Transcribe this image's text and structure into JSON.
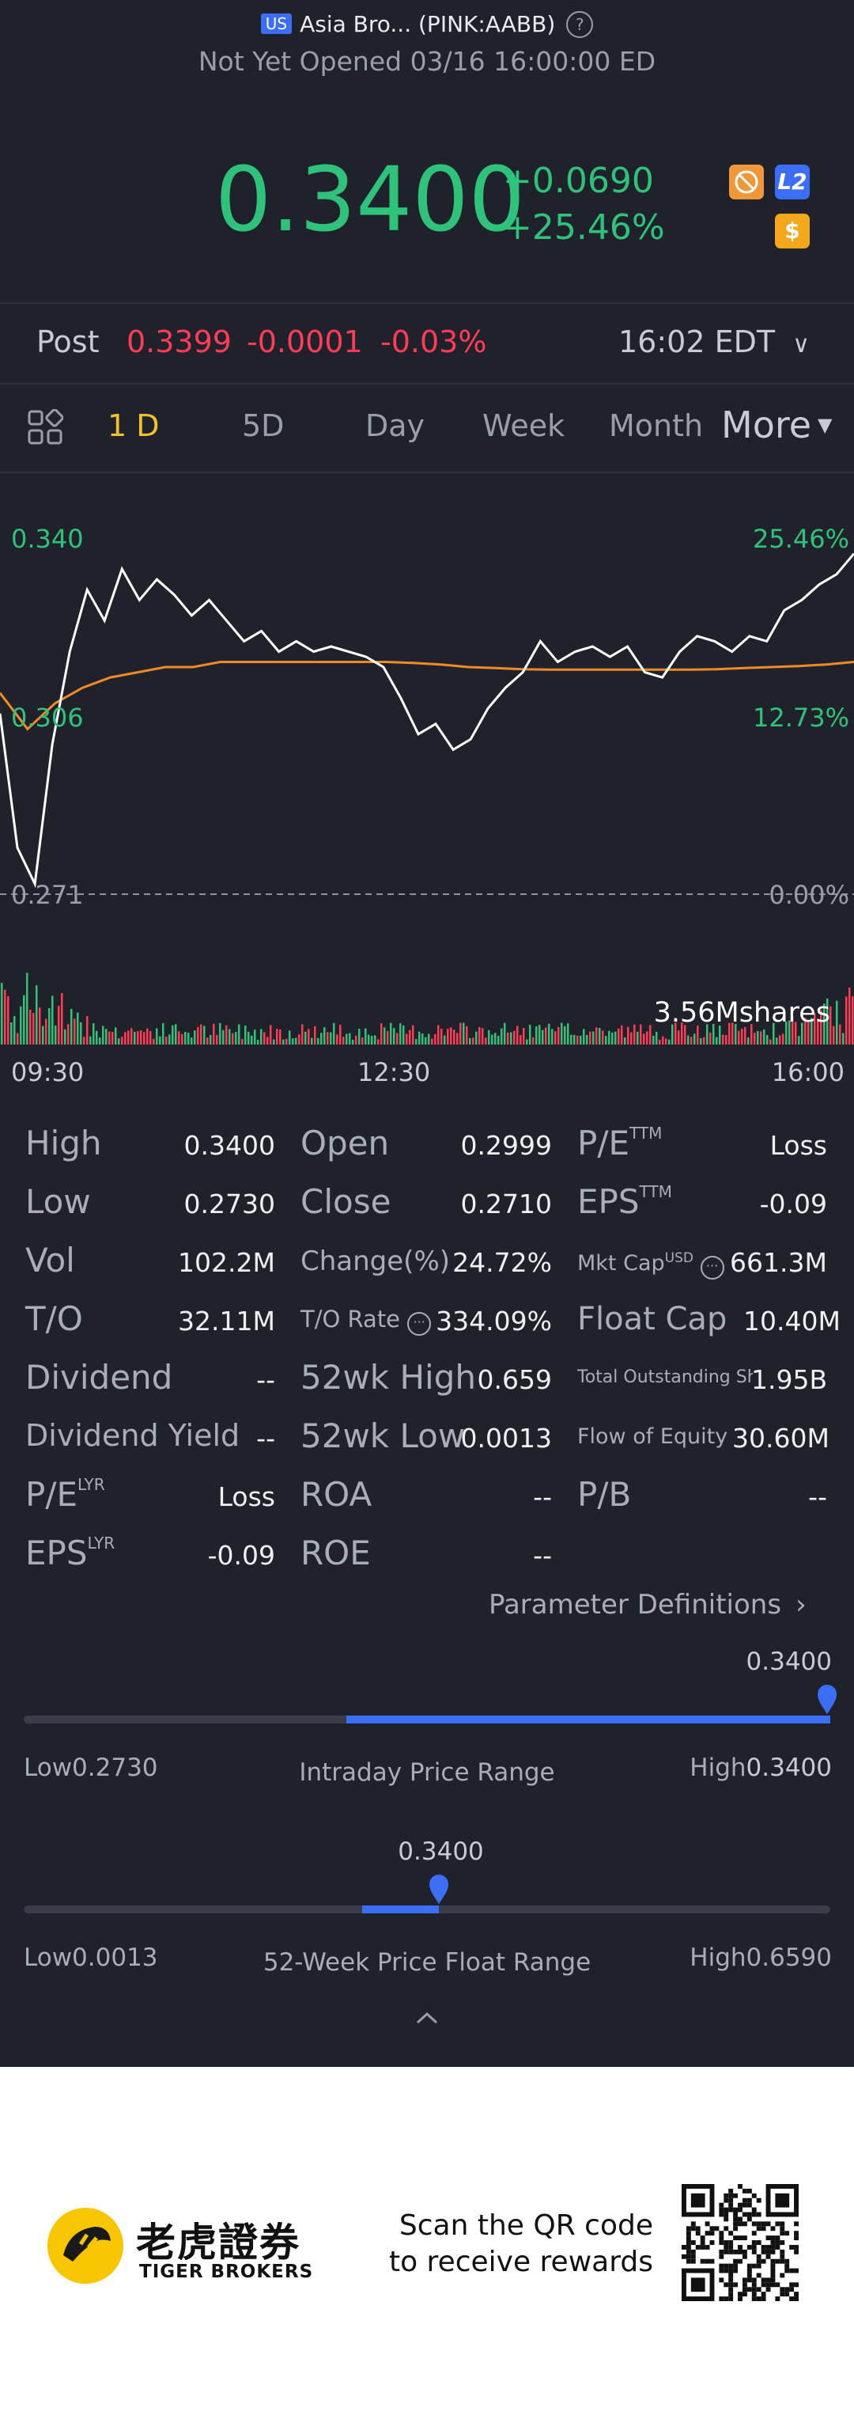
{
  "header": {
    "market": "US",
    "title": "Asia Bro... (PINK:AABB)",
    "status": "Not Yet Opened 03/16 16:00:00 ED"
  },
  "quote": {
    "price": "0.3400",
    "change": "+0.0690",
    "change_pct": "+25.46%",
    "badge_dollar": "$",
    "badge_l2": "L2"
  },
  "post": {
    "label": "Post",
    "price": "0.3399",
    "change": "-0.0001",
    "change_pct": "-0.03%",
    "time": "16:02 EDT"
  },
  "tabs": [
    "1 D",
    "5D",
    "Day",
    "Week",
    "Month"
  ],
  "tabs_more": "More",
  "chart_data": {
    "type": "line",
    "x_ticks": [
      "09:30",
      "12:30",
      "16:00"
    ],
    "y_left": [
      "0.340",
      "0.306",
      "0.271"
    ],
    "y_right": [
      "25.46%",
      "12.73%",
      "0.00%"
    ],
    "volume_label": "3.56Mshares",
    "ylim": [
      0.271,
      0.34
    ],
    "series": [
      {
        "values": [
          0.306,
          0.28,
          0.273,
          0.3,
          0.318,
          0.33,
          0.324,
          0.334,
          0.328,
          0.332,
          0.329,
          0.325,
          0.328,
          0.324,
          0.32,
          0.322,
          0.318,
          0.32,
          0.318,
          0.319,
          0.318,
          0.317,
          0.315,
          0.309,
          0.302,
          0.304,
          0.299,
          0.301,
          0.307,
          0.311,
          0.314,
          0.32,
          0.316,
          0.318,
          0.319,
          0.317,
          0.319,
          0.314,
          0.313,
          0.318,
          0.321,
          0.32,
          0.318,
          0.321,
          0.32,
          0.326,
          0.328,
          0.331,
          0.333,
          0.337
        ]
      },
      {
        "values": [
          0.31,
          0.303,
          0.308,
          0.311,
          0.313,
          0.314,
          0.315,
          0.315,
          0.316,
          0.316,
          0.316,
          0.316,
          0.316,
          0.316,
          0.316,
          0.3158,
          0.3155,
          0.315,
          0.3148,
          0.3146,
          0.3145,
          0.3145,
          0.3145,
          0.3145,
          0.3145,
          0.3145,
          0.3146,
          0.3148,
          0.315,
          0.3152,
          0.3155,
          0.316
        ]
      }
    ]
  },
  "stats": {
    "col1": [
      {
        "label": "High",
        "sup": "",
        "value": "0.3400"
      },
      {
        "label": "Low",
        "sup": "",
        "value": "0.2730"
      },
      {
        "label": "Vol",
        "sup": "",
        "value": "102.2M"
      },
      {
        "label": "T/O",
        "sup": "",
        "value": "32.11M"
      },
      {
        "label": "Dividend",
        "sup": "",
        "value": "--"
      },
      {
        "label": "Dividend Yield",
        "sup": "",
        "value": "--"
      },
      {
        "label": "P/E",
        "sup": "LYR",
        "value": "Loss"
      },
      {
        "label": "EPS",
        "sup": "LYR",
        "value": "-0.09"
      }
    ],
    "col2": [
      {
        "label": "Open",
        "value": "0.2999"
      },
      {
        "label": "Close",
        "value": "0.2710"
      },
      {
        "label": "Change(%)",
        "value": "24.72%"
      },
      {
        "label": "T/O Rate",
        "value": "334.09%"
      },
      {
        "label": "52wk High",
        "value": "0.659"
      },
      {
        "label": "52wk Low",
        "value": "0.0013"
      },
      {
        "label": "ROA",
        "value": "--"
      },
      {
        "label": "ROE",
        "value": "--"
      }
    ],
    "col3": [
      {
        "label": "P/E",
        "sup": "TTM",
        "value": "Loss"
      },
      {
        "label": "EPS",
        "sup": "TTM",
        "value": "-0.09"
      },
      {
        "label": "Mkt Cap",
        "sup": "USD",
        "value": "661.3M"
      },
      {
        "label": "Float Cap",
        "sup": "",
        "value": "10.40M"
      },
      {
        "label": "Total Outstanding Sh",
        "sup": "",
        "value": "1.95B"
      },
      {
        "label": "Flow of Equity",
        "sup": "",
        "value": "30.60M"
      },
      {
        "label": "P/B",
        "sup": "",
        "value": "--"
      }
    ]
  },
  "param_link": "Parameter Definitions",
  "intraday_range": {
    "title": "Intraday Price Range",
    "current": "0.3400",
    "low_label": "Low",
    "low": "0.2730",
    "high_label": "High",
    "high": "0.3400",
    "position": 1.0
  },
  "week52_range": {
    "title": "52-Week Price Float Range",
    "current": "0.3400",
    "low_label": "Low",
    "low": "0.0013",
    "high_label": "High",
    "high": "0.6590",
    "position": 0.515
  },
  "footer": {
    "brand_cn": "老虎證券",
    "brand_en": "TIGER BROKERS",
    "promo_line1": "Scan the QR code",
    "promo_line2": "to receive rewards"
  },
  "colors": {
    "up": "#2fc27a",
    "down": "#ff3b55",
    "accent": "#3b6ef5",
    "avg_line": "#f08a24",
    "tab_active": "#f3c12a"
  }
}
